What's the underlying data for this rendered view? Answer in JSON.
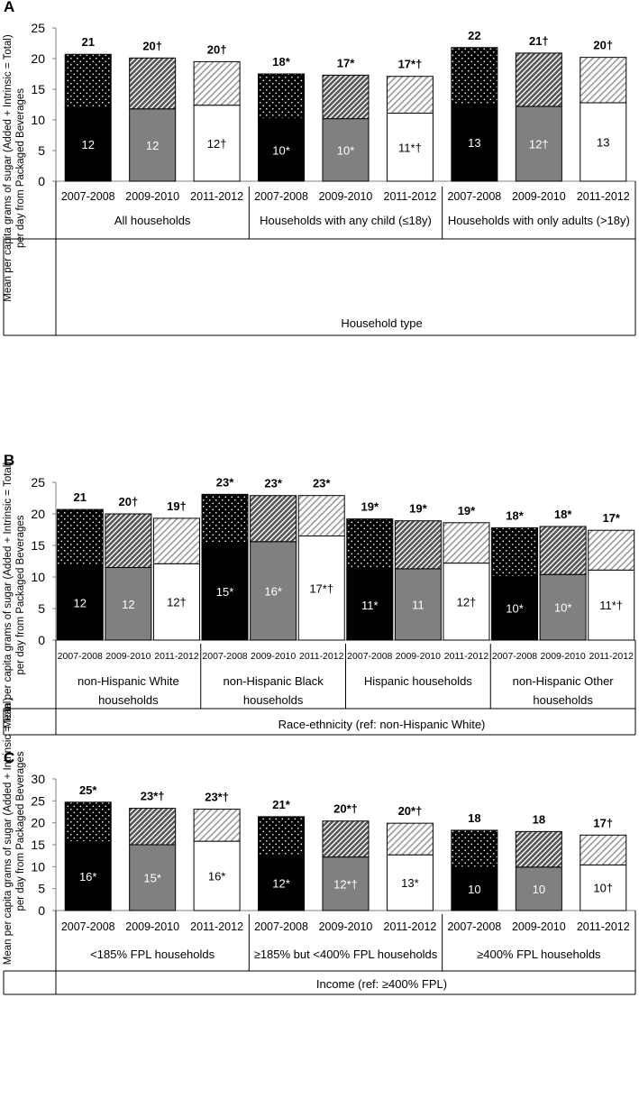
{
  "chart_data": [
    {
      "type": "bar",
      "panel_label": "A",
      "ylabel_line1": "Mean per capita grams of sugar (Added + Intrinsic = Total)",
      "ylabel_line2": "per day from Packaged Beverages",
      "ylim": [
        0,
        25
      ],
      "yticks": [
        "0",
        "5",
        "10",
        "15",
        "20",
        "25"
      ],
      "ytick_values": [
        0,
        5,
        10,
        15,
        20,
        25
      ],
      "stacked": true,
      "series": [
        {
          "name": "Intrinsic sugar",
          "role": "bottom"
        },
        {
          "name": "Added sugar",
          "role": "top"
        }
      ],
      "groups": [
        {
          "label": "All households",
          "bars": [
            {
              "category": "2007-2008",
              "intrinsic": 12,
              "total": 20.7,
              "intrinsic_label": "12",
              "total_label": "21"
            },
            {
              "category": "2009-2010",
              "intrinsic": 11.8,
              "total": 20.1,
              "intrinsic_label": "12",
              "total_label": "20†"
            },
            {
              "category": "2011-2012",
              "intrinsic": 12.4,
              "total": 19.5,
              "intrinsic_label": "12†",
              "total_label": "20†"
            }
          ]
        },
        {
          "label": "Households with any child (≤18y)",
          "bars": [
            {
              "category": "2007-2008",
              "intrinsic": 10.2,
              "total": 17.5,
              "intrinsic_label": "10*",
              "total_label": "18*"
            },
            {
              "category": "2009-2010",
              "intrinsic": 10.2,
              "total": 17.3,
              "intrinsic_label": "10*",
              "total_label": "17*"
            },
            {
              "category": "2011-2012",
              "intrinsic": 11.1,
              "total": 17.1,
              "intrinsic_label": "11*†",
              "total_label": "17*†"
            }
          ]
        },
        {
          "label": "Households with only adults (>18y)",
          "bars": [
            {
              "category": "2007-2008",
              "intrinsic": 12.6,
              "total": 21.8,
              "intrinsic_label": "13",
              "total_label": "22"
            },
            {
              "category": "2009-2010",
              "intrinsic": 12.2,
              "total": 20.9,
              "intrinsic_label": "12†",
              "total_label": "21†"
            },
            {
              "category": "2011-2012",
              "intrinsic": 12.8,
              "total": 20.2,
              "intrinsic_label": "13",
              "total_label": "20†"
            }
          ]
        }
      ],
      "xlabel": "Household type"
    },
    {
      "type": "bar",
      "panel_label": "B",
      "ylabel_line1": "Mean per capita grams of sugar (Added + Intrinsic = Total)",
      "ylabel_line2": "per day from Packaged Beverages",
      "ylim": [
        0,
        25
      ],
      "yticks": [
        "0",
        "5",
        "10",
        "15",
        "20",
        "25"
      ],
      "ytick_values": [
        0,
        5,
        10,
        15,
        20,
        25
      ],
      "stacked": true,
      "series": [
        {
          "name": "Intrinsic sugar",
          "role": "bottom"
        },
        {
          "name": "Added sugar",
          "role": "top"
        }
      ],
      "groups": [
        {
          "label": "non-Hispanic White households",
          "label_lines": [
            "non-Hispanic White",
            "households"
          ],
          "bars": [
            {
              "category": "2007-2008",
              "intrinsic": 11.8,
              "total": 20.7,
              "intrinsic_label": "12",
              "total_label": "21"
            },
            {
              "category": "2009-2010",
              "intrinsic": 11.5,
              "total": 20,
              "intrinsic_label": "12",
              "total_label": "20†"
            },
            {
              "category": "2011-2012",
              "intrinsic": 12.1,
              "total": 19.3,
              "intrinsic_label": "12†",
              "total_label": "19†"
            }
          ]
        },
        {
          "label": "non-Hispanic Black households",
          "label_lines": [
            "non-Hispanic Black",
            "households"
          ],
          "bars": [
            {
              "category": "2007-2008",
              "intrinsic": 15.5,
              "total": 23.1,
              "intrinsic_label": "15*",
              "total_label": "23*"
            },
            {
              "category": "2009-2010",
              "intrinsic": 15.6,
              "total": 22.9,
              "intrinsic_label": "16*",
              "total_label": "23*"
            },
            {
              "category": "2011-2012",
              "intrinsic": 16.5,
              "total": 22.9,
              "intrinsic_label": "17*†",
              "total_label": "23*"
            }
          ]
        },
        {
          "label": "Hispanic households",
          "label_lines": [
            "Hispanic households"
          ],
          "bars": [
            {
              "category": "2007-2008",
              "intrinsic": 11.2,
              "total": 19.2,
              "intrinsic_label": "11*",
              "total_label": "19*"
            },
            {
              "category": "2009-2010",
              "intrinsic": 11.3,
              "total": 18.9,
              "intrinsic_label": "11",
              "total_label": "19*"
            },
            {
              "category": "2011-2012",
              "intrinsic": 12.2,
              "total": 18.6,
              "intrinsic_label": "12†",
              "total_label": "19*"
            }
          ]
        },
        {
          "label": "non-Hispanic Other households",
          "label_lines": [
            "non-Hispanic Other",
            "households"
          ],
          "bars": [
            {
              "category": "2007-2008",
              "intrinsic": 10.1,
              "total": 17.8,
              "intrinsic_label": "10*",
              "total_label": "18*"
            },
            {
              "category": "2009-2010",
              "intrinsic": 10.4,
              "total": 18,
              "intrinsic_label": "10*",
              "total_label": "18*"
            },
            {
              "category": "2011-2012",
              "intrinsic": 11.1,
              "total": 17.4,
              "intrinsic_label": "11*†",
              "total_label": "17*"
            }
          ]
        }
      ],
      "xlabel": "Race-ethnicity (ref: non-Hispanic White)"
    },
    {
      "type": "bar",
      "panel_label": "C",
      "ylabel_line1": "Mean per capita grams of sugar (Added + Intrinsic = Total)",
      "ylabel_line2": "per day from Packaged Beverages",
      "ylim": [
        0,
        30
      ],
      "yticks": [
        "0",
        "5",
        "10",
        "15",
        "20",
        "25",
        "30"
      ],
      "ytick_values": [
        0,
        5,
        10,
        15,
        20,
        25,
        30
      ],
      "stacked": true,
      "series": [
        {
          "name": "Intrinsic sugar",
          "role": "bottom"
        },
        {
          "name": "Added sugar",
          "role": "top"
        }
      ],
      "groups": [
        {
          "label": "<185% FPL households",
          "bars": [
            {
              "category": "2007-2008",
              "intrinsic": 15.7,
              "total": 24.7,
              "intrinsic_label": "16*",
              "total_label": "25*"
            },
            {
              "category": "2009-2010",
              "intrinsic": 15,
              "total": 23.3,
              "intrinsic_label": "15*",
              "total_label": "23*†"
            },
            {
              "category": "2011-2012",
              "intrinsic": 15.8,
              "total": 23.1,
              "intrinsic_label": "16*",
              "total_label": "23*†"
            }
          ]
        },
        {
          "label": "≥185% but <400% FPL households",
          "bars": [
            {
              "category": "2007-2008",
              "intrinsic": 12.5,
              "total": 21.4,
              "intrinsic_label": "12*",
              "total_label": "21*"
            },
            {
              "category": "2009-2010",
              "intrinsic": 12.2,
              "total": 20.4,
              "intrinsic_label": "12*†",
              "total_label": "20*†"
            },
            {
              "category": "2011-2012",
              "intrinsic": 12.7,
              "total": 19.9,
              "intrinsic_label": "13*",
              "total_label": "20*†"
            }
          ]
        },
        {
          "label": "≥400% FPL households",
          "bars": [
            {
              "category": "2007-2008",
              "intrinsic": 9.9,
              "total": 18.3,
              "intrinsic_label": "10",
              "total_label": "18"
            },
            {
              "category": "2009-2010",
              "intrinsic": 9.9,
              "total": 18,
              "intrinsic_label": "10",
              "total_label": "18"
            },
            {
              "category": "2011-2012",
              "intrinsic": 10.4,
              "total": 17.2,
              "intrinsic_label": "10†",
              "total_label": "17†"
            }
          ]
        }
      ],
      "xlabel": "Income (ref: ≥400% FPL)"
    }
  ],
  "colors": {
    "period1": "#000000",
    "period2": "#808080",
    "period3": "#ffffff",
    "outline": "#000000",
    "label_on_dark": "#ffffff",
    "label_on_light": "#000000"
  }
}
